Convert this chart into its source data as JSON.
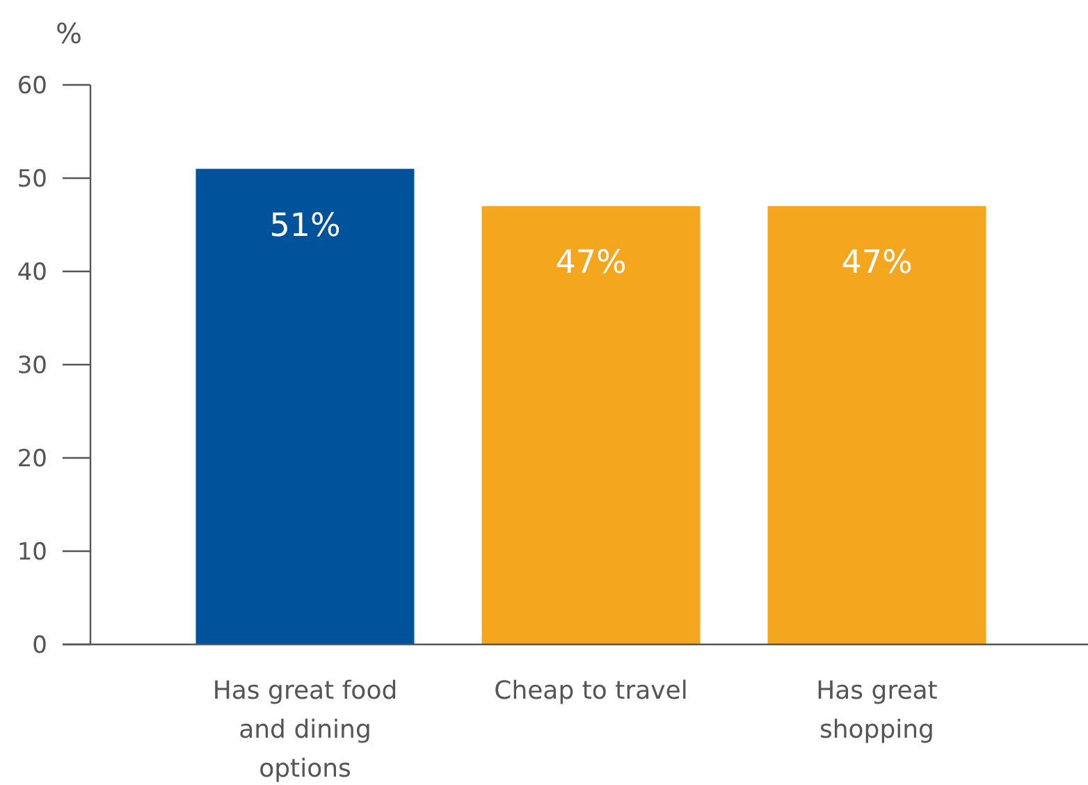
{
  "chart_data": {
    "type": "bar",
    "ylabel": "%",
    "categories": [
      "Has great food and dining options",
      "Cheap to travel",
      "Has great shopping"
    ],
    "values": [
      51,
      47,
      47
    ],
    "value_labels": [
      "51%",
      "47%",
      "47%"
    ],
    "colors": [
      "#00539b",
      "#f5a61f",
      "#f5a61f"
    ],
    "ylim": [
      0,
      60
    ],
    "yticks": [
      0,
      10,
      20,
      30,
      40,
      50,
      60
    ],
    "grid": false
  }
}
